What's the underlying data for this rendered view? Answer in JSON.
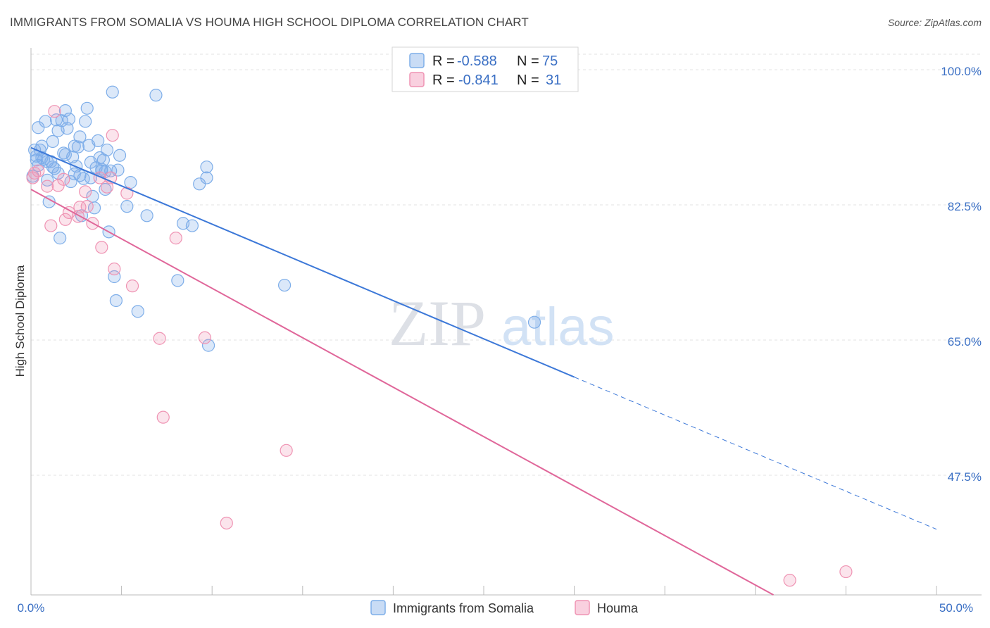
{
  "title": "IMMIGRANTS FROM SOMALIA VS HOUMA HIGH SCHOOL DIPLOMA CORRELATION CHART",
  "source": "Source: ZipAtlas.com",
  "watermark": {
    "zip": "ZIP",
    "atlas": "atlas"
  },
  "legend_top": [
    {
      "r_label": "R =",
      "r_value": "-0.588",
      "n_label": "N =",
      "n_value": "75",
      "color": "#7eaee9",
      "fill": "#c9dcf5"
    },
    {
      "r_label": "R =",
      "r_value": "-0.841",
      "n_label": "N =",
      "n_value": "31",
      "color": "#ef93b3",
      "fill": "#f9d0df"
    }
  ],
  "legend_bottom": [
    {
      "label": "Immigrants from Somalia",
      "color": "#7eaee9",
      "fill": "#c9dcf5"
    },
    {
      "label": "Houma",
      "color": "#ef93b3",
      "fill": "#f9d0df"
    }
  ],
  "chart_data": {
    "type": "scatter",
    "title": "IMMIGRANTS FROM SOMALIA VS HOUMA HIGH SCHOOL DIPLOMA CORRELATION CHART",
    "xlabel": "",
    "ylabel": "High School Diploma",
    "xlim": [
      0,
      50
    ],
    "ylim": [
      32,
      102
    ],
    "x_tick_labels": [
      "0.0%",
      "50.0%"
    ],
    "y_ticks": [
      47.5,
      65.0,
      82.5,
      100.0
    ],
    "y_tick_labels": [
      "47.5%",
      "65.0%",
      "82.5%",
      "100.0%"
    ],
    "grid": true,
    "legend_position": "top-center",
    "series": [
      {
        "name": "Immigrants from Somalia",
        "color": "#3c78d8",
        "marker_color": "#7eaee9",
        "trend": {
          "x0": 0.0,
          "y0": 89.9,
          "x1": 30.0,
          "y1": 60.2,
          "dash_x1": 50.0,
          "dash_y1": 40.5
        },
        "points": [
          [
            0.2,
            89.6
          ],
          [
            0.3,
            88.3
          ],
          [
            0.4,
            87.6
          ],
          [
            0.4,
            92.5
          ],
          [
            0.5,
            89.6
          ],
          [
            0.6,
            90.1
          ],
          [
            0.7,
            88.4
          ],
          [
            0.8,
            93.3
          ],
          [
            0.9,
            88.1
          ],
          [
            1.0,
            82.9
          ],
          [
            1.1,
            88.1
          ],
          [
            1.2,
            90.7
          ],
          [
            1.3,
            87.2
          ],
          [
            1.4,
            93.5
          ],
          [
            1.5,
            92.1
          ],
          [
            1.6,
            78.2
          ],
          [
            1.7,
            93.4
          ],
          [
            1.8,
            89.2
          ],
          [
            1.9,
            94.7
          ],
          [
            2.0,
            92.4
          ],
          [
            2.1,
            93.6
          ],
          [
            2.2,
            85.5
          ],
          [
            2.3,
            88.7
          ],
          [
            2.4,
            90.1
          ],
          [
            2.5,
            87.5
          ],
          [
            2.6,
            90.0
          ],
          [
            2.7,
            86.3
          ],
          [
            2.8,
            81.1
          ],
          [
            2.9,
            85.9
          ],
          [
            3.0,
            93.3
          ],
          [
            3.1,
            95.0
          ],
          [
            3.2,
            90.2
          ],
          [
            3.3,
            86.0
          ],
          [
            3.4,
            83.6
          ],
          [
            3.5,
            82.1
          ],
          [
            3.6,
            87.3
          ],
          [
            3.7,
            90.8
          ],
          [
            3.8,
            88.6
          ],
          [
            3.9,
            87.1
          ],
          [
            4.0,
            88.3
          ],
          [
            4.1,
            84.5
          ],
          [
            4.2,
            89.6
          ],
          [
            4.3,
            79.0
          ],
          [
            4.4,
            86.9
          ],
          [
            4.5,
            97.1
          ],
          [
            4.6,
            73.2
          ],
          [
            4.7,
            70.1
          ],
          [
            4.8,
            87.0
          ],
          [
            4.9,
            88.9
          ],
          [
            5.3,
            82.3
          ],
          [
            5.5,
            85.4
          ],
          [
            5.9,
            68.7
          ],
          [
            6.4,
            81.1
          ],
          [
            6.9,
            96.7
          ],
          [
            8.1,
            72.7
          ],
          [
            8.4,
            80.1
          ],
          [
            8.9,
            79.8
          ],
          [
            9.8,
            64.3
          ],
          [
            9.7,
            86.0
          ],
          [
            9.7,
            87.4
          ],
          [
            9.3,
            85.2
          ],
          [
            14.0,
            72.1
          ],
          [
            27.8,
            67.3
          ],
          [
            0.1,
            86.2
          ],
          [
            0.3,
            88.8
          ],
          [
            1.2,
            87.4
          ],
          [
            1.5,
            86.6
          ],
          [
            0.6,
            88.6
          ],
          [
            2.4,
            86.5
          ],
          [
            3.9,
            86.9
          ],
          [
            1.9,
            89.0
          ],
          [
            2.7,
            91.3
          ],
          [
            3.3,
            88.0
          ],
          [
            0.9,
            85.7
          ],
          [
            4.1,
            86.8
          ]
        ]
      },
      {
        "name": "Houma",
        "color": "#e0679a",
        "marker_color": "#ef93b3",
        "trend": {
          "x0": 0.0,
          "y0": 84.5,
          "x1": 41.0,
          "y1": 32.0
        },
        "points": [
          [
            0.1,
            86.0
          ],
          [
            0.2,
            86.6
          ],
          [
            0.4,
            86.9
          ],
          [
            0.9,
            84.9
          ],
          [
            1.1,
            79.8
          ],
          [
            1.3,
            94.6
          ],
          [
            1.5,
            85.0
          ],
          [
            1.8,
            85.8
          ],
          [
            1.9,
            80.6
          ],
          [
            2.1,
            81.5
          ],
          [
            2.6,
            81.0
          ],
          [
            2.7,
            82.2
          ],
          [
            3.0,
            84.2
          ],
          [
            3.1,
            82.3
          ],
          [
            3.4,
            80.1
          ],
          [
            3.8,
            86.0
          ],
          [
            3.9,
            77.0
          ],
          [
            4.2,
            84.8
          ],
          [
            4.4,
            86.0
          ],
          [
            4.5,
            91.5
          ],
          [
            4.6,
            74.2
          ],
          [
            5.3,
            84.0
          ],
          [
            5.6,
            72.0
          ],
          [
            7.1,
            65.2
          ],
          [
            7.3,
            55.0
          ],
          [
            8.0,
            78.2
          ],
          [
            9.6,
            65.3
          ],
          [
            10.8,
            41.3
          ],
          [
            14.1,
            50.7
          ],
          [
            41.9,
            33.9
          ],
          [
            45.0,
            35.0
          ]
        ]
      }
    ]
  }
}
